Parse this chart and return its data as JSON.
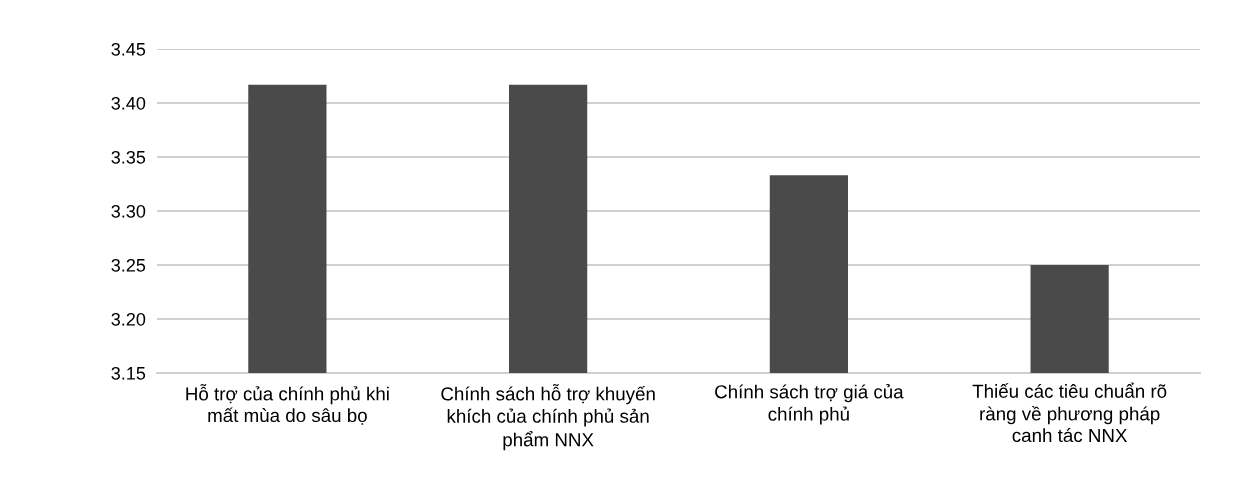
{
  "chart_data": {
    "type": "bar",
    "categories": [
      "Hỗ trợ của chính phủ khi\nmất mùa do sâu bọ",
      "Chính sách hỗ trợ khuyến\nkhích của chính phủ sản\nphẩm NNX",
      "Chính sách trợ giá của\nchính phủ",
      "Thiếu các tiêu chuẩn rõ\nràng về phương pháp\ncanh tác NNX"
    ],
    "values": [
      3.417,
      3.417,
      3.333,
      3.25
    ],
    "color": "#4a4a4a",
    "ylim": [
      3.15,
      3.45
    ],
    "yticks": [
      {
        "value": 3.15,
        "label": "3.15"
      },
      {
        "value": 3.2,
        "label": "3.20"
      },
      {
        "value": 3.25,
        "label": "3.25"
      },
      {
        "value": 3.3,
        "label": "3.30"
      },
      {
        "value": 3.35,
        "label": "3.35"
      },
      {
        "value": 3.4,
        "label": "3.40"
      },
      {
        "value": 3.45,
        "label": "3.45"
      }
    ],
    "grid": "y",
    "legend": false
  }
}
